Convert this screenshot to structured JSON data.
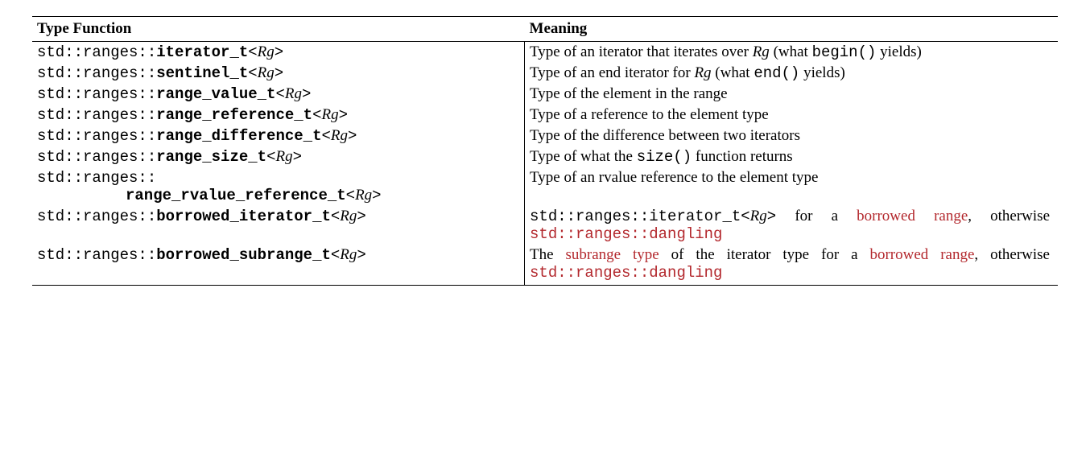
{
  "header": {
    "col1": "Type Function",
    "col2": "Meaning"
  },
  "common": {
    "prefix": "std::ranges::",
    "tparam_open": "<",
    "tparam_name": "Rg",
    "tparam_close": ">"
  },
  "rows": {
    "r1": {
      "fn": "iterator_t",
      "m1": "Type of an iterator that iterates over ",
      "m2": " (what ",
      "m3_code": "begin()",
      "m4": " yields)"
    },
    "r2": {
      "fn": "sentinel_t",
      "m1": "Type of an end iterator for ",
      "m2": " (what ",
      "m3_code": "end()",
      "m4": " yields)"
    },
    "r3": {
      "fn": "range_value_t",
      "m": "Type of the element in the range"
    },
    "r4": {
      "fn": "range_reference_t",
      "m": "Type of a reference to the element type"
    },
    "r5": {
      "fn": "range_difference_t",
      "m": "Type of the difference between two iterators"
    },
    "r6": {
      "fn": "range_size_t",
      "m1": "Type of what the ",
      "m2_code": "size()",
      "m3": " function returns"
    },
    "r7": {
      "fn": "range_rvalue_reference_t",
      "m": "Type of an rvalue reference to the element type"
    },
    "r8": {
      "fn": "borrowed_iterator_t",
      "m1_code_pre": "std::ranges::iterator_t<",
      "m1_code_post": ">",
      "m2a": "for a ",
      "m2b_link": "borrowed range",
      "m2c": ", otherwise ",
      "m3_code": "std::ranges::dangling"
    },
    "r9": {
      "fn": "borrowed_subrange_t",
      "m1a": "The ",
      "m1b_link": "subrange type",
      "m1c": " of the iterator type for a ",
      "m1d_link": "borrowed range",
      "m1e": ", otherwise ",
      "m2_code": "std::ranges::dangling"
    }
  }
}
